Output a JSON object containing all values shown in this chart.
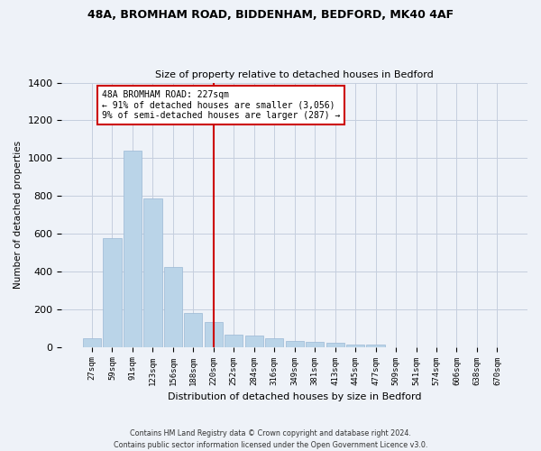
{
  "title1": "48A, BROMHAM ROAD, BIDDENHAM, BEDFORD, MK40 4AF",
  "title2": "Size of property relative to detached houses in Bedford",
  "xlabel": "Distribution of detached houses by size in Bedford",
  "ylabel": "Number of detached properties",
  "categories": [
    "27sqm",
    "59sqm",
    "91sqm",
    "123sqm",
    "156sqm",
    "188sqm",
    "220sqm",
    "252sqm",
    "284sqm",
    "316sqm",
    "349sqm",
    "381sqm",
    "413sqm",
    "445sqm",
    "477sqm",
    "509sqm",
    "541sqm",
    "574sqm",
    "606sqm",
    "638sqm",
    "670sqm"
  ],
  "values": [
    45,
    575,
    1040,
    785,
    425,
    180,
    130,
    65,
    60,
    45,
    30,
    27,
    22,
    15,
    12,
    0,
    0,
    0,
    0,
    0,
    0
  ],
  "bar_color": "#bad4e8",
  "bar_edge_color": "#9ab8d5",
  "vline_x_index": 6,
  "vline_color": "#cc0000",
  "annotation_text": "48A BROMHAM ROAD: 227sqm\n← 91% of detached houses are smaller (3,056)\n9% of semi-detached houses are larger (287) →",
  "annotation_box_color": "#ffffff",
  "annotation_box_edge": "#cc0000",
  "ylim": [
    0,
    1400
  ],
  "yticks": [
    0,
    200,
    400,
    600,
    800,
    1000,
    1200,
    1400
  ],
  "footer": "Contains HM Land Registry data © Crown copyright and database right 2024.\nContains public sector information licensed under the Open Government Licence v3.0.",
  "bg_color": "#eef2f8",
  "plot_bg": "#eef2f8",
  "grid_color": "#c5cede",
  "title1_fontsize": 9,
  "title2_fontsize": 8.5
}
